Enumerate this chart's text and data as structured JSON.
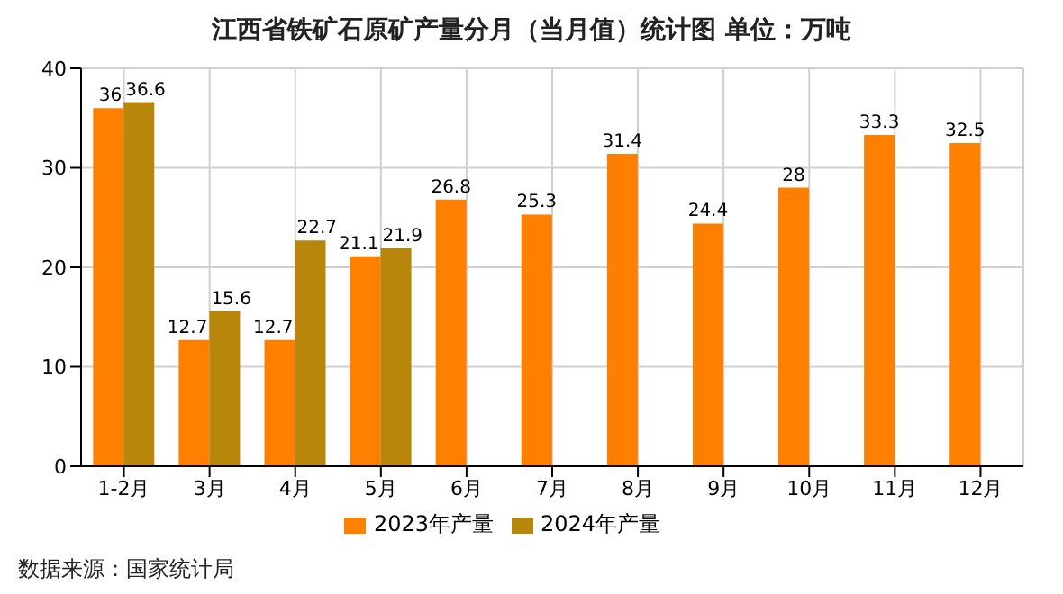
{
  "chart_data": {
    "type": "bar",
    "title": "江西省铁矿石原矿产量分月（当月值）统计图 单位：万吨",
    "categories": [
      "1-2月",
      "3月",
      "4月",
      "5月",
      "6月",
      "7月",
      "8月",
      "9月",
      "10月",
      "11月",
      "12月"
    ],
    "series": [
      {
        "name": "2023年产量",
        "color": "#ff8000",
        "values": [
          36,
          12.7,
          12.7,
          21.1,
          26.8,
          25.3,
          31.4,
          24.4,
          28,
          33.3,
          32.5
        ]
      },
      {
        "name": "2024年产量",
        "color": "#b8860b",
        "values": [
          36.6,
          15.6,
          22.7,
          21.9,
          null,
          null,
          null,
          null,
          null,
          null,
          null
        ]
      }
    ],
    "ylim": [
      0,
      40
    ],
    "yticks": [
      0,
      10,
      20,
      30,
      40
    ],
    "grid": true,
    "legend": "bottom",
    "data_labels": true,
    "annotations": [
      "数据来源：国家统计局"
    ]
  }
}
